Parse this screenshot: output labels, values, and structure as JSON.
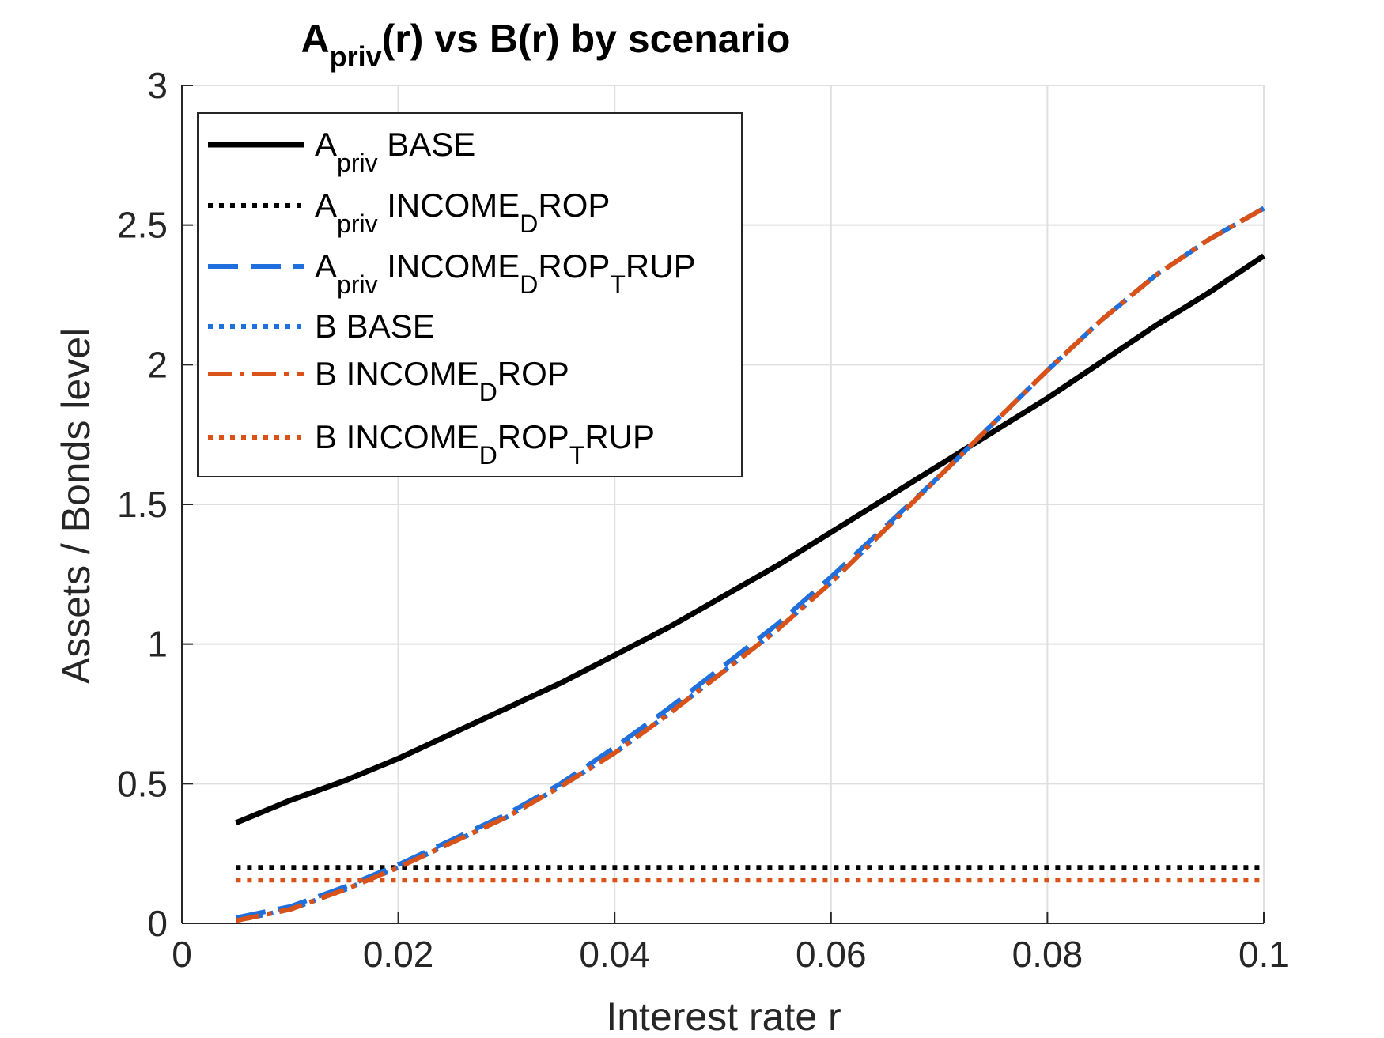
{
  "chart_data": {
    "type": "line",
    "title_main": "A",
    "title_sub": "priv",
    "title_rest": "(r) vs B(r) by scenario",
    "xlabel": "Interest rate r",
    "ylabel": "Assets / Bonds level",
    "xlim": [
      0,
      0.1
    ],
    "ylim": [
      0,
      3
    ],
    "xticks": [
      0,
      0.02,
      0.04,
      0.06,
      0.08,
      0.1
    ],
    "yticks": [
      0,
      0.5,
      1,
      1.5,
      2,
      2.5,
      3
    ],
    "xtick_labels": [
      "0",
      "0.02",
      "0.04",
      "0.06",
      "0.08",
      "0.1"
    ],
    "ytick_labels": [
      "0",
      "0.5",
      "1",
      "1.5",
      "2",
      "2.5",
      "3"
    ],
    "grid": true,
    "legend_position": "top-left",
    "x": [
      0.005,
      0.01,
      0.015,
      0.02,
      0.025,
      0.03,
      0.035,
      0.04,
      0.045,
      0.05,
      0.055,
      0.06,
      0.065,
      0.07,
      0.075,
      0.08,
      0.085,
      0.09,
      0.095,
      0.1
    ],
    "series": [
      {
        "label_parts": [
          [
            "A",
            "n"
          ],
          [
            "priv",
            "sub"
          ],
          [
            " BASE",
            "n"
          ]
        ],
        "color": "#000000",
        "style": "solid",
        "values": [
          0.36,
          0.44,
          0.51,
          0.59,
          0.68,
          0.77,
          0.86,
          0.96,
          1.06,
          1.17,
          1.28,
          1.4,
          1.52,
          1.64,
          1.76,
          1.88,
          2.01,
          2.14,
          2.26,
          2.39
        ]
      },
      {
        "label_parts": [
          [
            "A",
            "n"
          ],
          [
            "priv",
            "sub"
          ],
          [
            " INCOME",
            "n"
          ],
          [
            "D",
            "sub"
          ],
          [
            "ROP",
            "n"
          ]
        ],
        "color": "#000000",
        "style": "dotted",
        "values": [
          0.2,
          0.2,
          0.2,
          0.2,
          0.2,
          0.2,
          0.2,
          0.2,
          0.2,
          0.2,
          0.2,
          0.2,
          0.2,
          0.2,
          0.2,
          0.2,
          0.2,
          0.2,
          0.2,
          0.2
        ]
      },
      {
        "label_parts": [
          [
            "A",
            "n"
          ],
          [
            "priv",
            "sub"
          ],
          [
            " INCOME",
            "n"
          ],
          [
            "D",
            "sub"
          ],
          [
            "ROP",
            "n"
          ],
          [
            "T",
            "sub"
          ],
          [
            "RUP",
            "n"
          ]
        ],
        "color": "#1f6fdc",
        "style": "dashed",
        "values": [
          0.02,
          0.06,
          0.13,
          0.21,
          0.3,
          0.39,
          0.5,
          0.63,
          0.77,
          0.92,
          1.07,
          1.24,
          1.42,
          1.6,
          1.79,
          1.98,
          2.16,
          2.32,
          2.45,
          2.56
        ]
      },
      {
        "label_parts": [
          [
            "B BASE",
            "n"
          ]
        ],
        "color": "#1f6fdc",
        "style": "dotted",
        "values": [
          0.01,
          0.05,
          0.12,
          0.2,
          0.29,
          0.38,
          0.49,
          0.61,
          0.75,
          0.9,
          1.05,
          1.22,
          1.41,
          1.6,
          1.79,
          1.98,
          2.16,
          2.32,
          2.45,
          2.56
        ]
      },
      {
        "label_parts": [
          [
            "B INCOME",
            "n"
          ],
          [
            "D",
            "sub"
          ],
          [
            "ROP",
            "n"
          ]
        ],
        "color": "#d95319",
        "style": "dashdot",
        "values": [
          0.01,
          0.05,
          0.12,
          0.2,
          0.29,
          0.38,
          0.49,
          0.61,
          0.75,
          0.9,
          1.05,
          1.22,
          1.41,
          1.6,
          1.79,
          1.98,
          2.16,
          2.32,
          2.45,
          2.56
        ]
      },
      {
        "label_parts": [
          [
            "B INCOME",
            "n"
          ],
          [
            "D",
            "sub"
          ],
          [
            "ROP",
            "n"
          ],
          [
            "T",
            "sub"
          ],
          [
            "RUP",
            "n"
          ]
        ],
        "color": "#d95319",
        "style": "dotted",
        "values": [
          0.155,
          0.155,
          0.155,
          0.155,
          0.155,
          0.155,
          0.155,
          0.155,
          0.155,
          0.155,
          0.155,
          0.155,
          0.155,
          0.155,
          0.155,
          0.155,
          0.155,
          0.155,
          0.155,
          0.155
        ]
      }
    ]
  }
}
